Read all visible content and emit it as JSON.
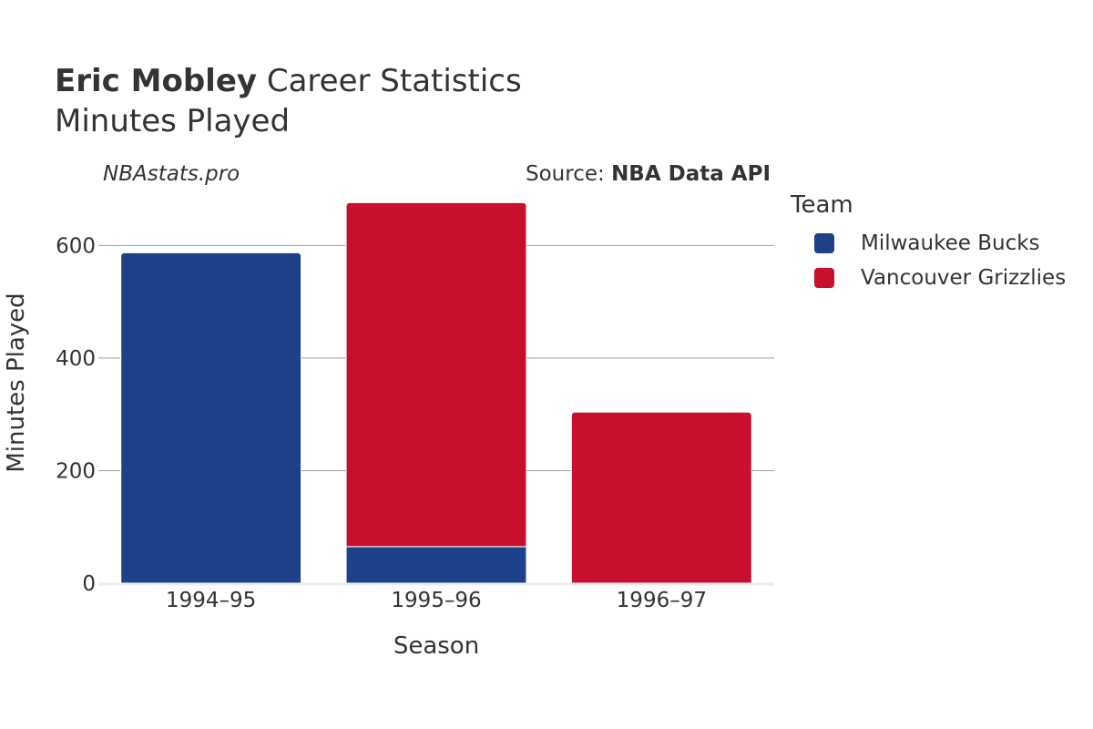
{
  "header": {
    "title_bold": "Eric Mobley",
    "title_rest": " Career Statistics",
    "subtitle": "Minutes Played",
    "credit": "NBAstats.pro",
    "source_prefix": "Source: ",
    "source_name": "NBA Data API"
  },
  "legend": {
    "title": "Team",
    "items": [
      {
        "label": "Milwaukee Bucks",
        "color": "#1D428A"
      },
      {
        "label": "Vancouver Grizzlies",
        "color": "#C8102E"
      }
    ]
  },
  "chart_data": {
    "type": "bar",
    "stacked": true,
    "xlabel": "Season",
    "ylabel": "Minutes Played",
    "categories": [
      "1994–95",
      "1995–96",
      "1996–97"
    ],
    "series": [
      {
        "name": "Milwaukee Bucks",
        "color": "#1D428A",
        "values": [
          587,
          65,
          0
        ]
      },
      {
        "name": "Vancouver Grizzlies",
        "color": "#C8102E",
        "values": [
          0,
          611,
          304
        ]
      }
    ],
    "ylim": [
      0,
      700
    ],
    "yticks": [
      0,
      200,
      400,
      600
    ],
    "grid": true,
    "legend_position": "right"
  }
}
